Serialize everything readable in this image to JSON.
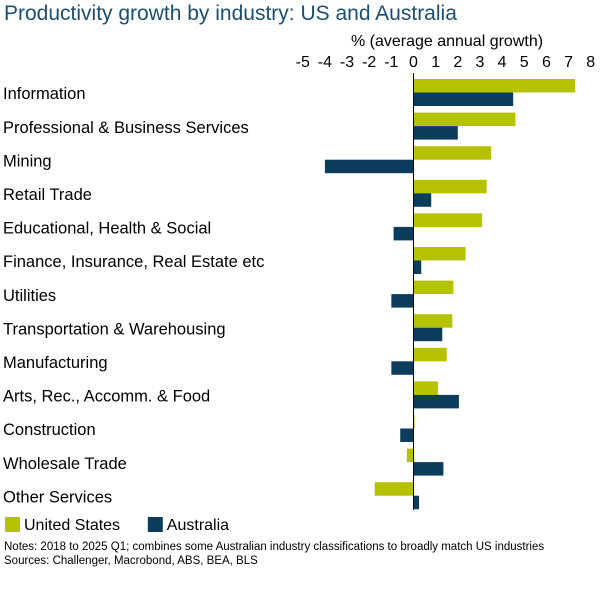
{
  "chart_data": {
    "type": "bar",
    "orientation": "horizontal",
    "title": "Productivity growth by industry: US and Australia",
    "xlabel": "% (average annual growth)",
    "xlim": [
      -5,
      8
    ],
    "xticks": [
      -5,
      -4,
      -3,
      -2,
      -1,
      0,
      1,
      2,
      3,
      4,
      5,
      6,
      7,
      8
    ],
    "grid": false,
    "legend_position": "bottom-left",
    "categories": [
      "Information",
      "Professional & Business Services",
      "Mining",
      "Retail Trade",
      "Educational, Health & Social",
      "Finance, Insurance, Real Estate etc",
      "Utilities",
      "Transportation & Warehousing",
      "Manufacturing",
      "Arts, Rec., Accomm. & Food",
      "Construction",
      "Wholesale Trade",
      "Other Services"
    ],
    "series": [
      {
        "name": "United States",
        "color": "#b5c200",
        "values": [
          7.3,
          4.6,
          3.5,
          3.3,
          3.1,
          2.35,
          1.8,
          1.75,
          1.5,
          1.1,
          0.05,
          -0.3,
          -1.75
        ]
      },
      {
        "name": "Australia",
        "color": "#0d3d5c",
        "values": [
          4.5,
          2.0,
          -4.0,
          0.8,
          -0.9,
          0.35,
          -1.0,
          1.3,
          -1.0,
          2.05,
          -0.6,
          1.35,
          0.25
        ]
      }
    ]
  },
  "notes": "Notes: 2018 to 2025 Q1; combines some Australian industry classifications to broadly match US industries",
  "sources": "Sources: Challenger, Macrobond, ABS, BEA, BLS"
}
